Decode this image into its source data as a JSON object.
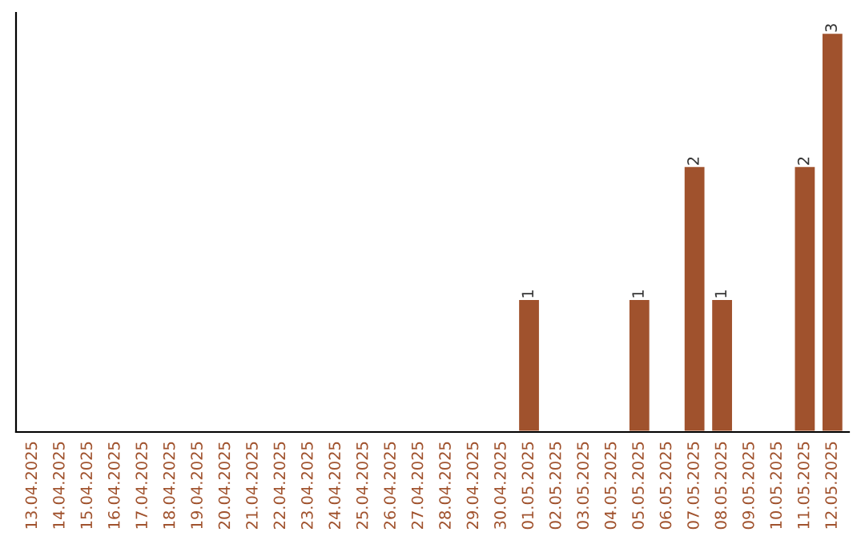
{
  "chart_data": {
    "type": "bar",
    "categories": [
      "13.04.2025",
      "14.04.2025",
      "15.04.2025",
      "16.04.2025",
      "17.04.2025",
      "18.04.2025",
      "19.04.2025",
      "20.04.2025",
      "21.04.2025",
      "22.04.2025",
      "23.04.2025",
      "24.04.2025",
      "25.04.2025",
      "26.04.2025",
      "27.04.2025",
      "28.04.2025",
      "29.04.2025",
      "30.04.2025",
      "01.05.2025",
      "02.05.2025",
      "03.05.2025",
      "04.05.2025",
      "05.05.2025",
      "06.05.2025",
      "07.05.2025",
      "08.05.2025",
      "09.05.2025",
      "10.05.2025",
      "11.05.2025",
      "12.05.2025"
    ],
    "values": [
      null,
      null,
      null,
      null,
      null,
      null,
      null,
      null,
      null,
      null,
      null,
      null,
      null,
      null,
      null,
      null,
      null,
      null,
      1,
      null,
      null,
      null,
      1,
      null,
      2,
      1,
      null,
      null,
      2,
      3
    ],
    "value_labels": [
      null,
      null,
      null,
      null,
      null,
      null,
      null,
      null,
      null,
      null,
      null,
      null,
      null,
      null,
      null,
      null,
      null,
      null,
      "1",
      null,
      null,
      null,
      "1",
      null,
      "2",
      "1",
      null,
      null,
      "2",
      "3"
    ],
    "color": "#a0522d",
    "ylim": [
      0,
      3.15
    ],
    "tick_labels": "x",
    "grid": false,
    "legend": false
  }
}
